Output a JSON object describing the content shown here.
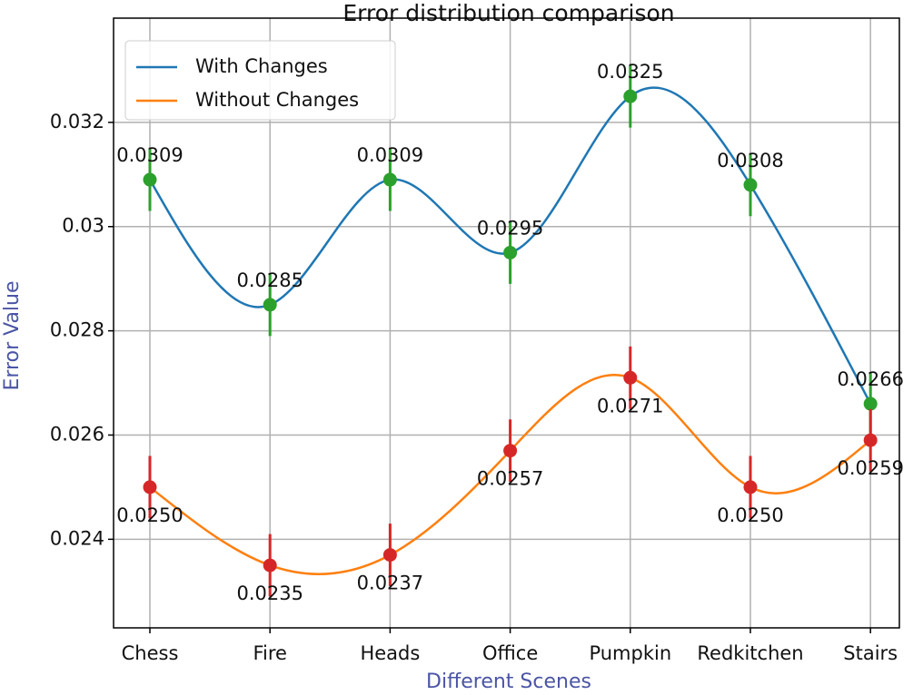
{
  "chart_data": {
    "type": "line",
    "title": "Error distribution comparison",
    "x_label": "Different Scenes",
    "y_label": "Error Value",
    "categories": [
      "Chess",
      "Fire",
      "Heads",
      "Office",
      "Pumpkin",
      "Redkitchen",
      "Stairs"
    ],
    "series": [
      {
        "name": "With Changes",
        "color": "#1f77b4",
        "marker_color": "#2ca02c",
        "label_side": "above",
        "values": [
          0.0309,
          0.0285,
          0.0309,
          0.0295,
          0.0325,
          0.0308,
          0.0266
        ],
        "value_labels": [
          "0.0309",
          "0.0285",
          "0.0309",
          "0.0295",
          "0.0325",
          "0.0308",
          "0.0266"
        ],
        "errors": [
          0.0006,
          0.0006,
          0.0006,
          0.0006,
          0.0006,
          0.0006,
          0.0006
        ]
      },
      {
        "name": "Without Changes",
        "color": "#ff7f0e",
        "marker_color": "#d62728",
        "label_side": "below",
        "values": [
          0.025,
          0.0235,
          0.0237,
          0.0257,
          0.0271,
          0.025,
          0.0259
        ],
        "value_labels": [
          "0.0250",
          "0.0235",
          "0.0237",
          "0.0257",
          "0.0271",
          "0.0250",
          "0.0259"
        ],
        "errors": [
          0.0006,
          0.0006,
          0.0006,
          0.0006,
          0.0006,
          0.0006,
          0.0006
        ]
      }
    ],
    "ylim": [
      0.0223,
      0.034
    ],
    "yticks": [
      0.024,
      0.026,
      0.028,
      0.03,
      0.032
    ],
    "grid": true,
    "smooth": true,
    "legend": "upper left"
  }
}
